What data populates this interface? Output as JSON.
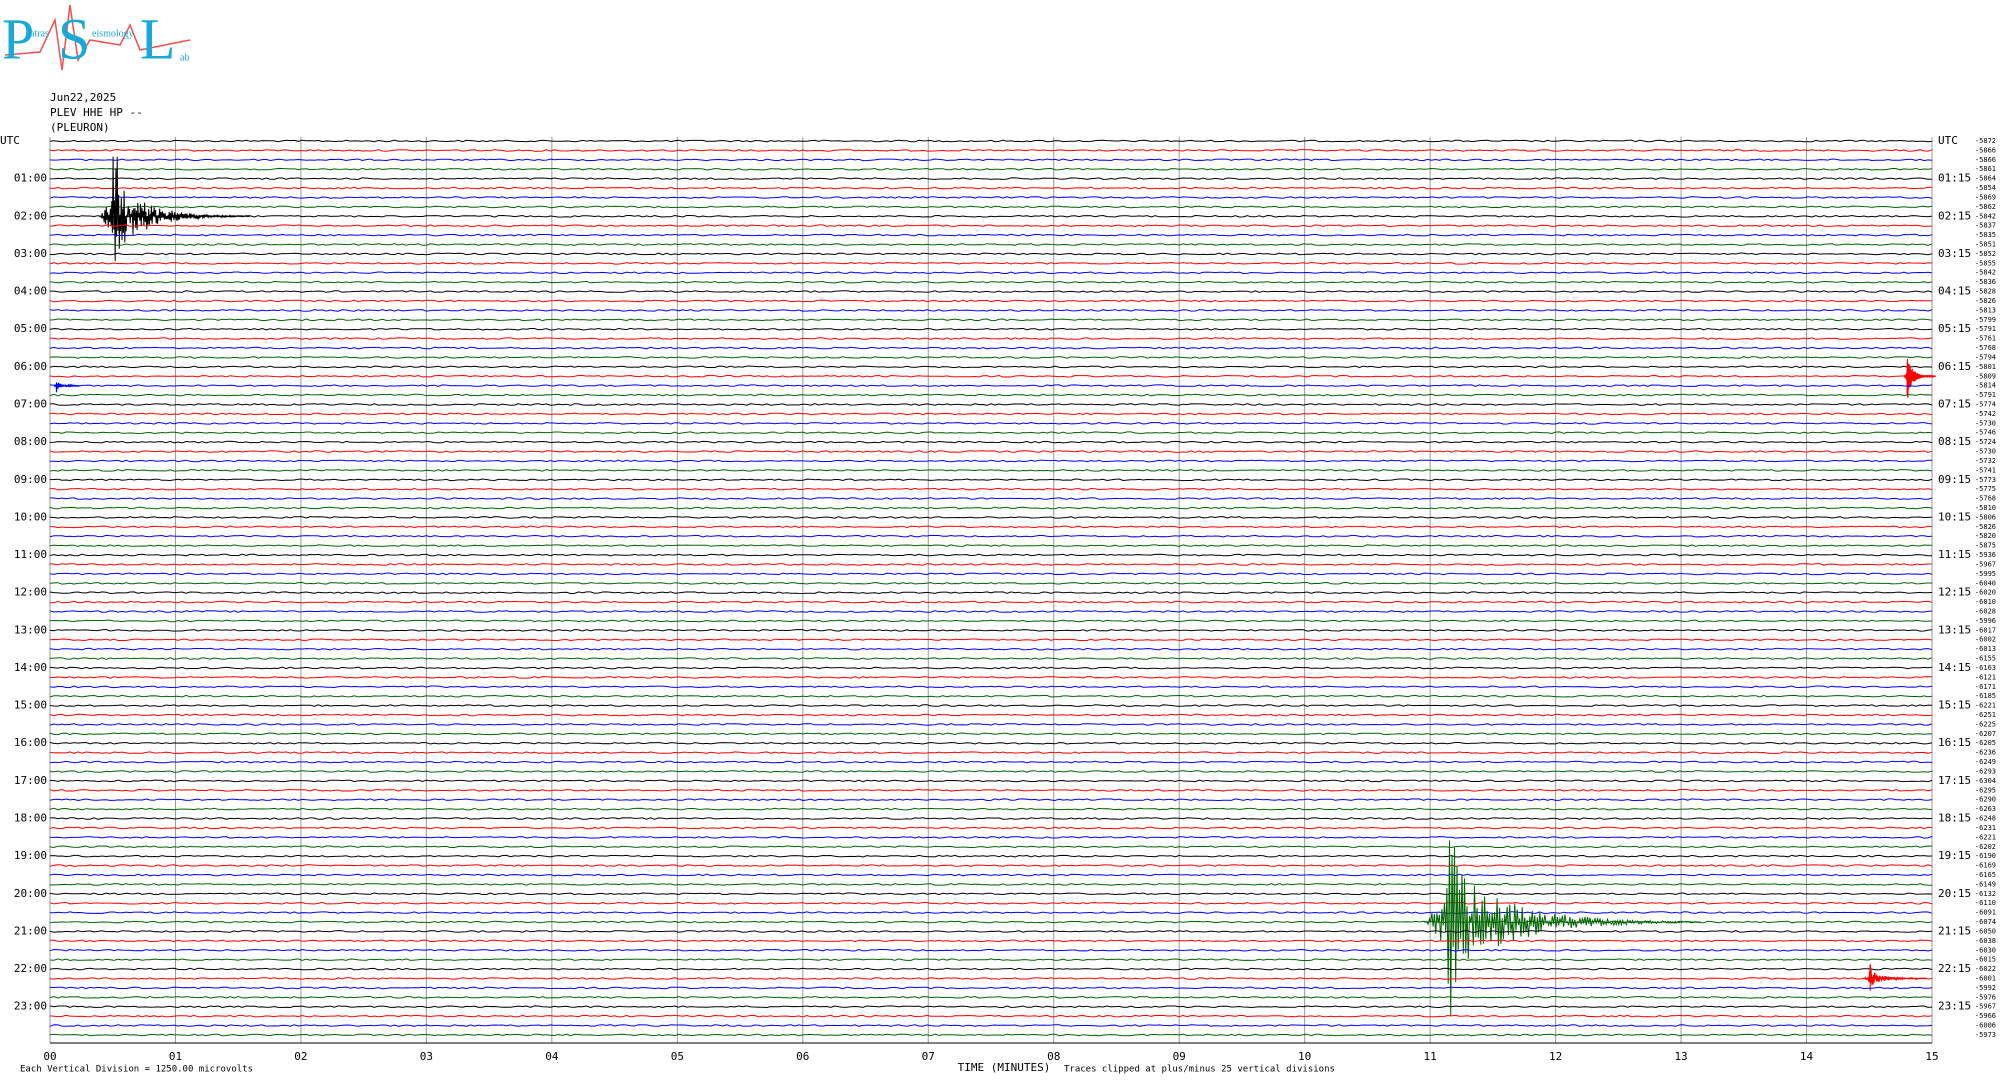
{
  "chart_data": {
    "type": "helicorder",
    "logo": {
      "letters": [
        "P",
        "S",
        "L"
      ],
      "words": [
        "atras",
        "eismology",
        "ab"
      ]
    },
    "header": [
      "Jun22,2025",
      "PLEV HHE HP --",
      "(PLEURON)"
    ],
    "colors": [
      "#000000",
      "#ff0000",
      "#0000ff",
      "#006400"
    ],
    "left_labels": [
      "UTC",
      "01:00",
      "02:00",
      "03:00",
      "04:00",
      "05:00",
      "06:00",
      "07:00",
      "08:00",
      "09:00",
      "10:00",
      "11:00",
      "12:00",
      "13:00",
      "14:00",
      "15:00",
      "16:00",
      "17:00",
      "18:00",
      "19:00",
      "20:00",
      "21:00",
      "22:00",
      "23:00"
    ],
    "right_labels": [
      "UTC",
      "01:15",
      "02:15",
      "03:15",
      "04:15",
      "05:15",
      "06:15",
      "07:15",
      "08:15",
      "09:15",
      "10:15",
      "11:15",
      "12:15",
      "13:15",
      "14:15",
      "15:15",
      "16:15",
      "17:15",
      "18:15",
      "19:15",
      "20:15",
      "21:15",
      "22:15",
      "23:15"
    ],
    "offsets": [
      -5872,
      -5866,
      -5866,
      -5861,
      -5864,
      -5854,
      -5869,
      -5862,
      -5842,
      -5837,
      -5835,
      -5851,
      -5852,
      -5855,
      -5842,
      -5836,
      -5828,
      -5826,
      -5813,
      -5799,
      -5791,
      -5761,
      -5768,
      -5794,
      -5801,
      -5809,
      -5814,
      -5791,
      -5774,
      -5742,
      -5730,
      -5746,
      -5724,
      -5730,
      -5732,
      -5741,
      -5773,
      -5775,
      -5768,
      -5810,
      -5806,
      -5826,
      -5820,
      -5875,
      -5936,
      -5967,
      -5995,
      -6040,
      -6020,
      -6010,
      -6028,
      -5996,
      -6017,
      -6002,
      -6013,
      -6155,
      -6163,
      -6121,
      -6171,
      -6185,
      -6221,
      -6251,
      -6225,
      -6207,
      -6205,
      -6236,
      -6249,
      -6293,
      -6304,
      -6295,
      -6290,
      -6263,
      -6248,
      -6231,
      -6221,
      -6202,
      -6190,
      -6169,
      -6165,
      -6149,
      -6132,
      -6110,
      -6091,
      -6074,
      -6050,
      -6038,
      -6030,
      -6015,
      -6022,
      -6001,
      -5992,
      -5976,
      -5967,
      -5966,
      -6006,
      -5973
    ],
    "events": [
      {
        "row": 8,
        "minute": 0.49,
        "amplitude": 4.5,
        "duration": 1.2
      },
      {
        "row": 25,
        "minute": 14.8,
        "amplitude": 2,
        "duration": 0.25
      },
      {
        "row": 26,
        "minute": 0.05,
        "amplitude": 0.5,
        "duration": 0.2
      },
      {
        "row": 83,
        "minute": 11.13,
        "amplitude": 7,
        "duration": 2.2
      },
      {
        "row": 89,
        "minute": 14.5,
        "amplitude": 1,
        "duration": 0.5
      }
    ],
    "xlim": [
      0,
      15
    ],
    "xticks": [
      {
        "value": 0,
        "label": "00"
      },
      {
        "value": 1,
        "label": "01"
      },
      {
        "value": 2,
        "label": "02"
      },
      {
        "value": 3,
        "label": "03"
      },
      {
        "value": 4,
        "label": "04"
      },
      {
        "value": 5,
        "label": "05"
      },
      {
        "value": 6,
        "label": "06"
      },
      {
        "value": 7,
        "label": "07"
      },
      {
        "value": 8,
        "label": "08"
      },
      {
        "value": 9,
        "label": "09"
      },
      {
        "value": 10,
        "label": "10"
      },
      {
        "value": 11,
        "label": "11"
      },
      {
        "value": 12,
        "label": "12"
      },
      {
        "value": 13,
        "label": "13"
      },
      {
        "value": 14,
        "label": "14"
      },
      {
        "value": 15,
        "label": "15"
      }
    ],
    "xlabel": "TIME (MINUTES)",
    "scale_note": "Each Vertical Division = 1250.00 microvolts",
    "clip_note": "Traces clipped at plus/minus 25 vertical divisions"
  }
}
